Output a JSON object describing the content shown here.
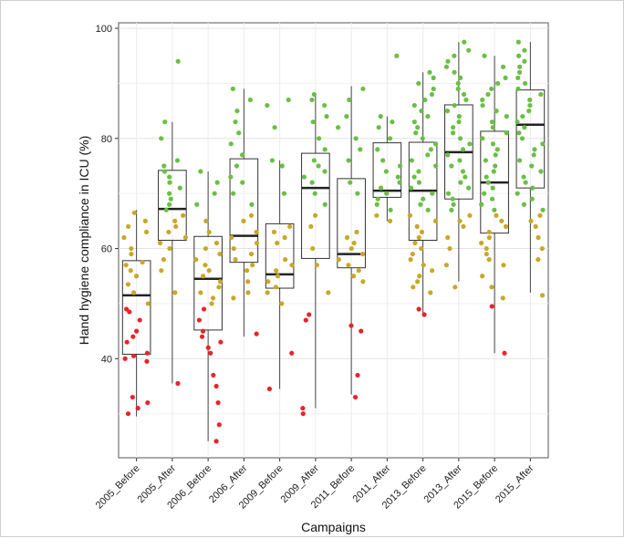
{
  "chart_data": {
    "type": "box-scatter",
    "xlabel": "Campaigns",
    "ylabel": "Hand hygiene compliance in ICU (%)",
    "ylim": [
      22,
      101
    ],
    "y_ticks": [
      40,
      60,
      80,
      100
    ],
    "grid": true,
    "categories": [
      "2005_Before",
      "2005_After",
      "2006_Before",
      "2006_After",
      "2009_Before",
      "2009_After",
      "2011_Before",
      "2011_After",
      "2013_Before",
      "2013_After",
      "2015_Before",
      "2015_After"
    ],
    "point_colors": {
      "high": "#6abf45",
      "mid": "#c8a828",
      "low": "#e8242a"
    },
    "boxes": [
      {
        "min": 29.5,
        "q1": 40.8,
        "median": 51.5,
        "q3": 57.8,
        "max": 67
      },
      {
        "min": 35.5,
        "q1": 61.5,
        "median": 67.2,
        "q3": 74.2,
        "max": 83
      },
      {
        "min": 25,
        "q1": 45.2,
        "median": 54.5,
        "q3": 62.2,
        "max": 74
      },
      {
        "min": 44,
        "q1": 57.5,
        "median": 62.3,
        "q3": 76.3,
        "max": 89
      },
      {
        "min": 34.5,
        "q1": 52.8,
        "median": 55.3,
        "q3": 64.5,
        "max": 76
      },
      {
        "min": 31,
        "q1": 58.2,
        "median": 71.0,
        "q3": 77.3,
        "max": 88
      },
      {
        "min": 33.5,
        "q1": 56.5,
        "median": 59.0,
        "q3": 72.7,
        "max": 89.5
      },
      {
        "min": 65,
        "q1": 69.3,
        "median": 70.5,
        "q3": 79.2,
        "max": 84
      },
      {
        "min": 48,
        "q1": 61.5,
        "median": 70.5,
        "q3": 79.3,
        "max": 92
      },
      {
        "min": 54,
        "q1": 69.0,
        "median": 77.5,
        "q3": 86.1,
        "max": 97.5
      },
      {
        "min": 41,
        "q1": 62.8,
        "median": 72.0,
        "q3": 81.3,
        "max": 95
      },
      {
        "min": 52,
        "q1": 71.0,
        "median": 82.5,
        "q3": 88.8,
        "max": 97.5
      }
    ],
    "points": [
      [
        39.5,
        32,
        40,
        40.5,
        41,
        43,
        44,
        45,
        47,
        48.5,
        49,
        50,
        52,
        53.5,
        55,
        56,
        57,
        57.5,
        59,
        60,
        62,
        63,
        64,
        65,
        66.5,
        30,
        31,
        33
      ],
      [
        35.5,
        52,
        56,
        58,
        60,
        61,
        62,
        63,
        64,
        65,
        66,
        67,
        68,
        69,
        70,
        71,
        72,
        73,
        74,
        75,
        76,
        80,
        83,
        94
      ],
      [
        25,
        28,
        32,
        35,
        37,
        41,
        42,
        43,
        44,
        45,
        47,
        49,
        50,
        51,
        52,
        53,
        54,
        55,
        56,
        57,
        58,
        59,
        60,
        61,
        63,
        65,
        68,
        70,
        72,
        74
      ],
      [
        44.5,
        51,
        52,
        54,
        56,
        57,
        58,
        59,
        60,
        61,
        62,
        63,
        65,
        66,
        68,
        70,
        72,
        73,
        75,
        77,
        79,
        81,
        83,
        85,
        87,
        89
      ],
      [
        34.5,
        41,
        50,
        52,
        53,
        54,
        55,
        56,
        57,
        58,
        61,
        62,
        63,
        64,
        70,
        75,
        76,
        82,
        86,
        87
      ],
      [
        30,
        31,
        47,
        48,
        52,
        57,
        60,
        64,
        66,
        68,
        70,
        72,
        73,
        74,
        75,
        76,
        78,
        80,
        83,
        84,
        86,
        87,
        88
      ],
      [
        33,
        37,
        45,
        46,
        54,
        55,
        56,
        57,
        58,
        59,
        60,
        61,
        62,
        63,
        70,
        72,
        76,
        78,
        80,
        82,
        84,
        87,
        89
      ],
      [
        65,
        66,
        67,
        68,
        69,
        70,
        71,
        72,
        73,
        74,
        75,
        76,
        78,
        80,
        82,
        83,
        84,
        95
      ],
      [
        48,
        49,
        52,
        53,
        54,
        55,
        56,
        57,
        58,
        59,
        60,
        61,
        62,
        63,
        64,
        65,
        66,
        67,
        68,
        69,
        70,
        71,
        72,
        73,
        74,
        75,
        76,
        77,
        78,
        79,
        80,
        81,
        82,
        83,
        84,
        85,
        86,
        87,
        88,
        89,
        90,
        91,
        92
      ],
      [
        53,
        57,
        60,
        62,
        64,
        65,
        66,
        67,
        68,
        69,
        70,
        71,
        72,
        73,
        74,
        75,
        76,
        77,
        78,
        79,
        80,
        81,
        82,
        83,
        84,
        85,
        86,
        87,
        88,
        89,
        90,
        91,
        92,
        93,
        94,
        95,
        96,
        97.5
      ],
      [
        41,
        49.5,
        51,
        53,
        55,
        57,
        58,
        59,
        60,
        61,
        62,
        63,
        64,
        65,
        66,
        67,
        68,
        69,
        70,
        71,
        72,
        73,
        74,
        75,
        76,
        77,
        78,
        79,
        80,
        81,
        82,
        83,
        84,
        85,
        86,
        87,
        88,
        89,
        90,
        91,
        93,
        95
      ],
      [
        51.5,
        58,
        60,
        62,
        64,
        65,
        66,
        67,
        68,
        69,
        70,
        71,
        72,
        73,
        74,
        75,
        76,
        77,
        78,
        79,
        80,
        81,
        82,
        83,
        84,
        85,
        86,
        87,
        88,
        89,
        90,
        91,
        92,
        93,
        94,
        95,
        96,
        97.5
      ]
    ]
  }
}
